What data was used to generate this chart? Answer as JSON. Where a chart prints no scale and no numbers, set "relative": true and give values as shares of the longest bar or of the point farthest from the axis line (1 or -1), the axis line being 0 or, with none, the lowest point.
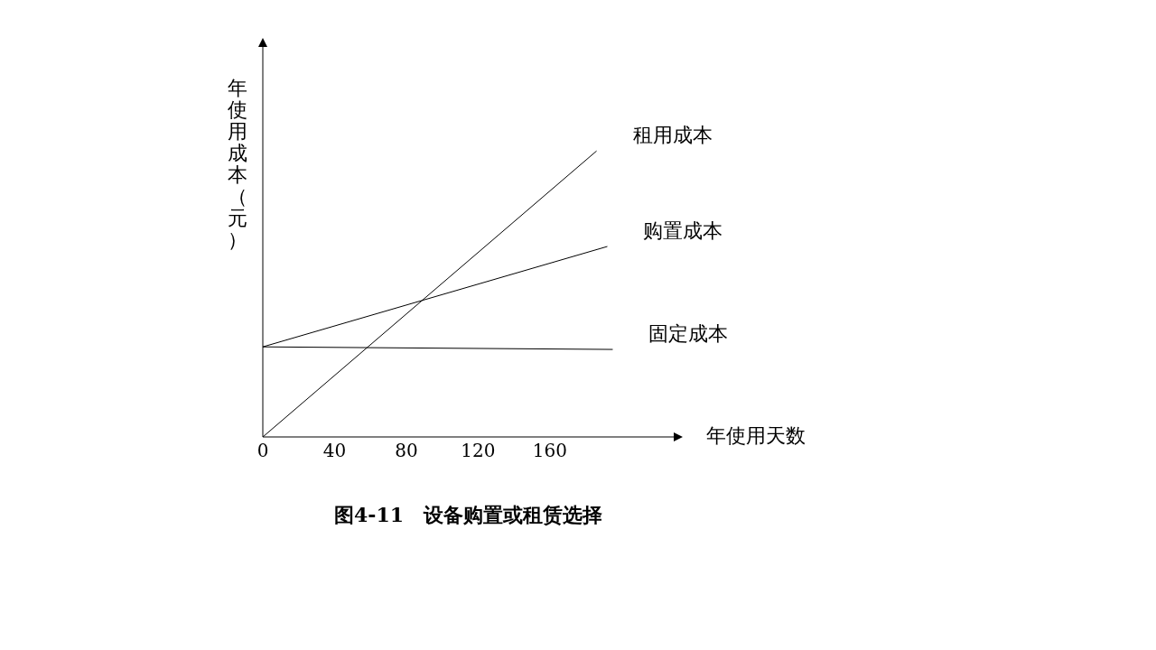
{
  "chart_data": {
    "type": "line",
    "title": "图4-11　设备购置或租赁选择",
    "xlabel": "年使用天数",
    "ylabel": "年使用成本（元）",
    "relative": true,
    "xlim": [
      0,
      230
    ],
    "xticks": [
      0,
      40,
      80,
      120,
      160
    ],
    "marker": "none",
    "grid": false,
    "legend": false,
    "series": [
      {
        "name": "租用成本",
        "color": "#000000",
        "x": [
          0,
          186
        ],
        "values": [
          0,
          1
        ]
      },
      {
        "name": "购置成本",
        "color": "#000000",
        "x": [
          0,
          192
        ],
        "values": [
          0.315,
          0.666
        ]
      },
      {
        "name": "固定成本",
        "color": "#000000",
        "x": [
          0,
          195
        ],
        "values": [
          0.315,
          0.306
        ]
      }
    ]
  }
}
